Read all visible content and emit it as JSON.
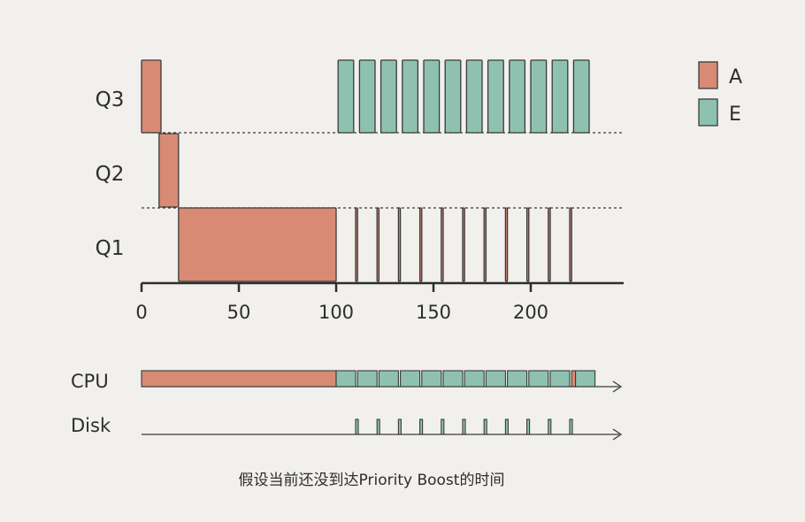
{
  "chart_data": {
    "type": "gantt",
    "queues": [
      "Q3",
      "Q2",
      "Q1"
    ],
    "x_ticks": [
      "0",
      "50",
      "100",
      "150",
      "200"
    ],
    "x_range": [
      0,
      245
    ],
    "colors": {
      "A": "#d88a75",
      "E": "#8fc1b1",
      "stroke": "#3a3a3a"
    },
    "legend": [
      {
        "name": "A",
        "color": "#d88a75"
      },
      {
        "name": "E",
        "color": "#8fc1b1"
      }
    ],
    "bars": [
      {
        "job": "A",
        "queue": "Q3",
        "start": 0,
        "end": 10
      },
      {
        "job": "A",
        "queue": "Q2",
        "start": 9,
        "end": 19
      },
      {
        "job": "A",
        "queue": "Q1",
        "start": 19,
        "end": 100
      },
      {
        "job": "E",
        "queue": "Q3",
        "start": 101,
        "end": 109
      },
      {
        "job": "A",
        "queue": "Q1",
        "start": 110,
        "end": 111
      },
      {
        "job": "E",
        "queue": "Q3",
        "start": 112,
        "end": 120
      },
      {
        "job": "A",
        "queue": "Q1",
        "start": 121,
        "end": 122
      },
      {
        "job": "E",
        "queue": "Q3",
        "start": 123,
        "end": 131
      },
      {
        "job": "A",
        "queue": "Q1",
        "start": 132,
        "end": 133
      },
      {
        "job": "E",
        "queue": "Q3",
        "start": 134,
        "end": 142
      },
      {
        "job": "A",
        "queue": "Q1",
        "start": 143,
        "end": 144
      },
      {
        "job": "E",
        "queue": "Q3",
        "start": 145,
        "end": 153
      },
      {
        "job": "A",
        "queue": "Q1",
        "start": 154,
        "end": 155
      },
      {
        "job": "E",
        "queue": "Q3",
        "start": 156,
        "end": 164
      },
      {
        "job": "A",
        "queue": "Q1",
        "start": 165,
        "end": 166
      },
      {
        "job": "E",
        "queue": "Q3",
        "start": 167,
        "end": 175
      },
      {
        "job": "A",
        "queue": "Q1",
        "start": 176,
        "end": 177
      },
      {
        "job": "E",
        "queue": "Q3",
        "start": 178,
        "end": 186
      },
      {
        "job": "A",
        "queue": "Q1",
        "start": 187,
        "end": 188
      },
      {
        "job": "E",
        "queue": "Q3",
        "start": 189,
        "end": 197
      },
      {
        "job": "A",
        "queue": "Q1",
        "start": 198,
        "end": 199
      },
      {
        "job": "E",
        "queue": "Q3",
        "start": 200,
        "end": 208
      },
      {
        "job": "A",
        "queue": "Q1",
        "start": 209,
        "end": 210
      },
      {
        "job": "E",
        "queue": "Q3",
        "start": 211,
        "end": 219
      },
      {
        "job": "A",
        "queue": "Q1",
        "start": 220,
        "end": 221
      },
      {
        "job": "E",
        "queue": "Q3",
        "start": 222,
        "end": 230
      }
    ],
    "cpu_label": "CPU",
    "disk_label": "Disk",
    "cpu_track": [
      {
        "job": "A",
        "start": 0,
        "end": 100
      },
      {
        "job": "E",
        "start": 100,
        "end": 110
      },
      {
        "job": "E",
        "start": 111,
        "end": 121
      },
      {
        "job": "E",
        "start": 122,
        "end": 132
      },
      {
        "job": "E",
        "start": 133,
        "end": 143
      },
      {
        "job": "E",
        "start": 144,
        "end": 154
      },
      {
        "job": "E",
        "start": 155,
        "end": 165
      },
      {
        "job": "E",
        "start": 166,
        "end": 176
      },
      {
        "job": "E",
        "start": 177,
        "end": 187
      },
      {
        "job": "E",
        "start": 188,
        "end": 198
      },
      {
        "job": "E",
        "start": 199,
        "end": 209
      },
      {
        "job": "E",
        "start": 210,
        "end": 220
      },
      {
        "job": "A",
        "start": 221,
        "end": 223
      },
      {
        "job": "E",
        "start": 223,
        "end": 233
      }
    ],
    "disk_track": [
      {
        "job": "E",
        "start": 110,
        "end": 111
      },
      {
        "job": "E",
        "start": 121,
        "end": 122
      },
      {
        "job": "E",
        "start": 132,
        "end": 133
      },
      {
        "job": "E",
        "start": 143,
        "end": 144
      },
      {
        "job": "E",
        "start": 154,
        "end": 155
      },
      {
        "job": "E",
        "start": 165,
        "end": 166
      },
      {
        "job": "E",
        "start": 176,
        "end": 177
      },
      {
        "job": "E",
        "start": 187,
        "end": 188
      },
      {
        "job": "E",
        "start": 198,
        "end": 199
      },
      {
        "job": "E",
        "start": 209,
        "end": 210
      },
      {
        "job": "E",
        "start": 220,
        "end": 221
      }
    ],
    "caption": "假设当前还没到达Priority Boost的时间"
  }
}
